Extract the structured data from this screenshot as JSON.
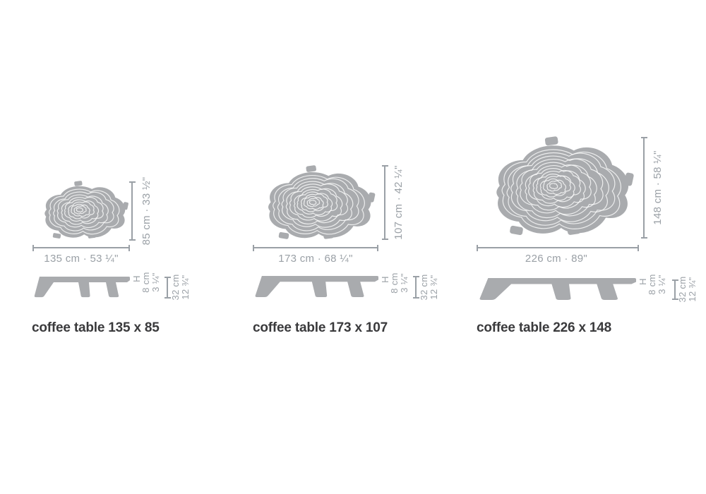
{
  "colors": {
    "shape_fill": "#a9abae",
    "ring_stroke": "#ffffff",
    "dim": "#9aa0a6",
    "caption": "#3a3a3c"
  },
  "tables": [
    {
      "caption": "coffee table 135 x 85",
      "width_label": "135 cm · 53 ¼\"",
      "depth_label": "85 cm · 33 ½\"",
      "height_symbol": "H",
      "tabletop_height_cm": "8 cm",
      "tabletop_height_in": "3 ¼\"",
      "overall_height_cm": "32 cm",
      "overall_height_in": "12 ¾\""
    },
    {
      "caption": "coffee table 173 x 107",
      "width_label": "173 cm · 68 ¼\"",
      "depth_label": "107 cm · 42 ¼\"",
      "height_symbol": "H",
      "tabletop_height_cm": "8 cm",
      "tabletop_height_in": "3 ¼\"",
      "overall_height_cm": "32 cm",
      "overall_height_in": "12 ¾\""
    },
    {
      "caption": "coffee table 226 x 148",
      "width_label": "226 cm · 89\"",
      "depth_label": "148 cm · 58 ¼\"",
      "height_symbol": "H",
      "tabletop_height_cm": "8 cm",
      "tabletop_height_in": "3 ¼\"",
      "overall_height_cm": "32 cm",
      "overall_height_in": "12 ¾\""
    }
  ]
}
